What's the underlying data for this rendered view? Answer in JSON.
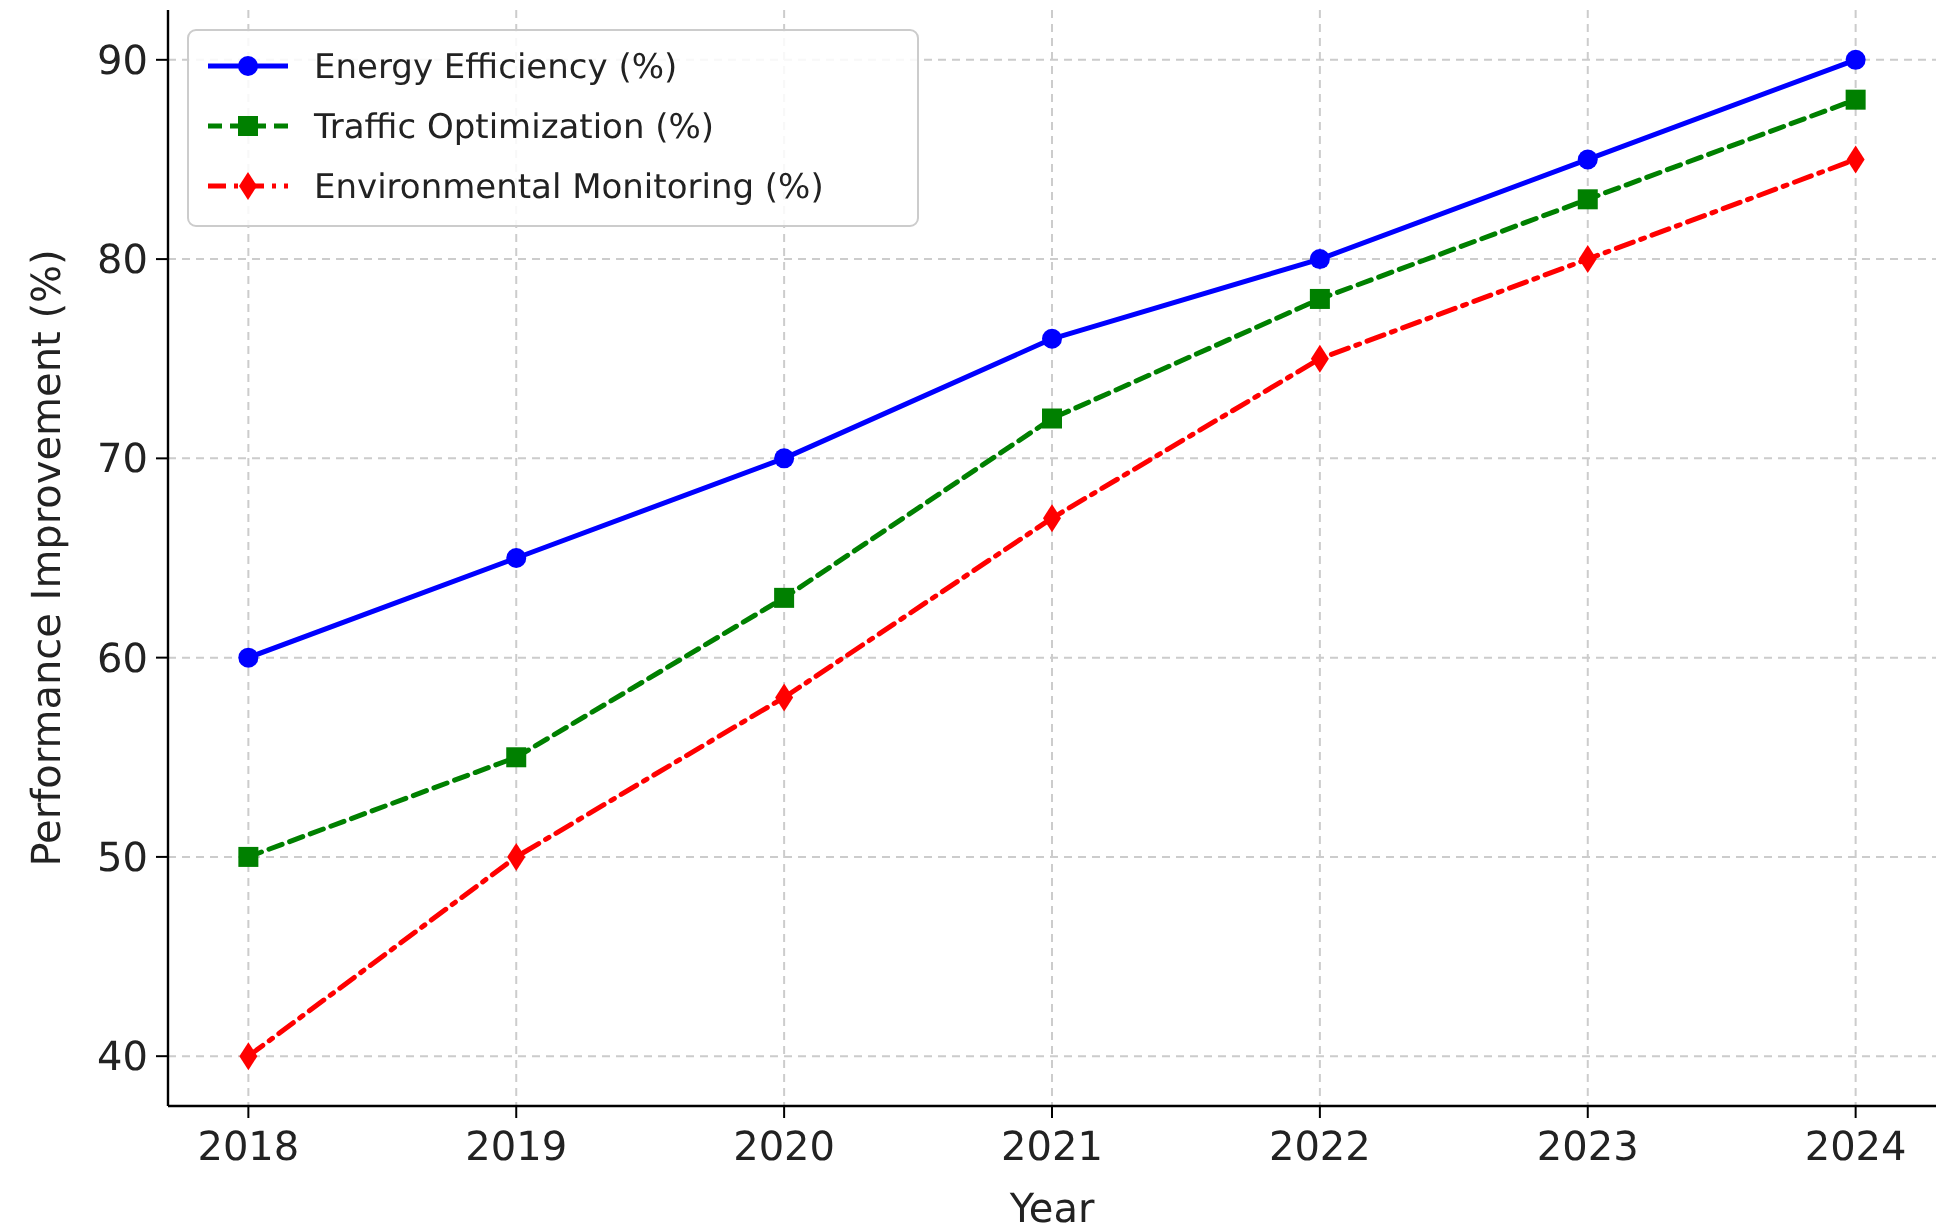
{
  "chart_data": {
    "type": "line",
    "xlabel": "Year",
    "ylabel": "Performance Improvement (%)",
    "x": [
      2018,
      2019,
      2020,
      2021,
      2022,
      2023,
      2024
    ],
    "xlim": [
      2017.7,
      2024.3
    ],
    "xticks": [
      2018,
      2019,
      2020,
      2021,
      2022,
      2023,
      2024
    ],
    "ylim": [
      37.5,
      92.5
    ],
    "yticks": [
      40,
      50,
      60,
      70,
      80,
      90
    ],
    "grid": true,
    "legend": "top left",
    "series": [
      {
        "name": "Energy Efficiency (%)",
        "color": "#0000ff",
        "marker": "circle",
        "line_style": "solid",
        "values": [
          60,
          65,
          70,
          76,
          80,
          85,
          90
        ]
      },
      {
        "name": "Traffic Optimization (%)",
        "color": "#008000",
        "marker": "square",
        "line_style": "dashed",
        "values": [
          50,
          55,
          63,
          72,
          78,
          83,
          88
        ]
      },
      {
        "name": "Environmental Monitoring (%)",
        "color": "#ff0000",
        "marker": "diamond",
        "line_style": "dashdot",
        "values": [
          40,
          50,
          58,
          67,
          75,
          80,
          85
        ]
      }
    ]
  }
}
